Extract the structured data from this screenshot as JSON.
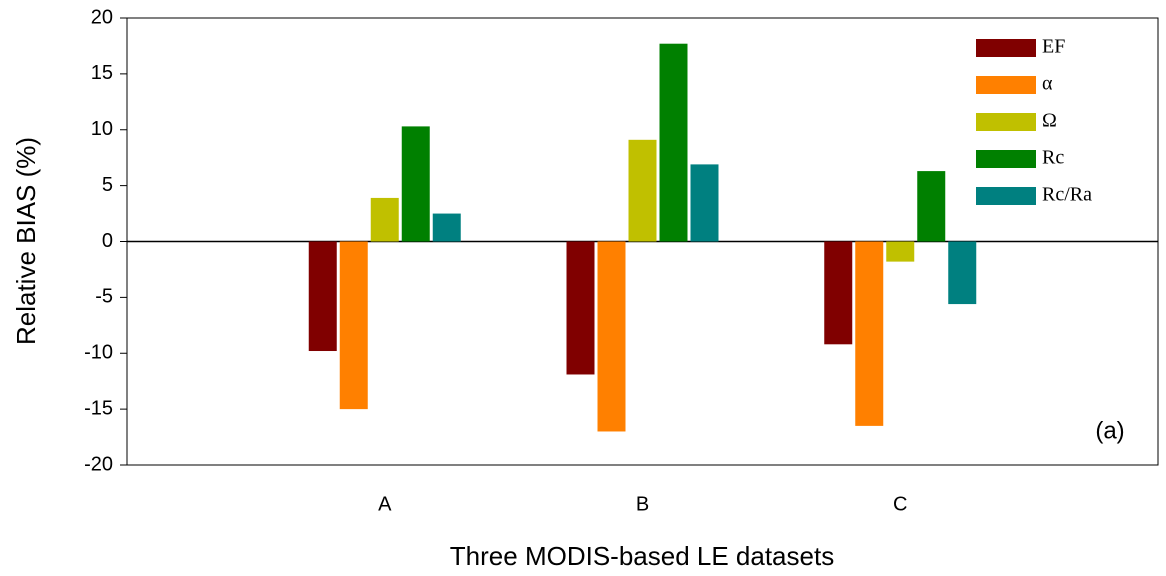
{
  "chart_data": {
    "type": "bar",
    "annotation": "(a)",
    "x_label": "Three MODIS-based LE datasets",
    "y_label": "Relative BIAS (%)",
    "categories": [
      "A",
      "B",
      "C"
    ],
    "series": [
      {
        "name": "EF",
        "color": "#800000",
        "values": [
          -9.8,
          -11.9,
          -9.2
        ]
      },
      {
        "name": "α",
        "color": "#ff8000",
        "values": [
          -15,
          -17,
          -16.5
        ]
      },
      {
        "name": "Ω",
        "color": "#c0c000",
        "values": [
          3.9,
          9.1,
          -1.8
        ]
      },
      {
        "name": "Rc",
        "color": "#008000",
        "values": [
          10.3,
          17.7,
          6.3
        ]
      },
      {
        "name": "Rc/Ra",
        "color": "#008080",
        "values": [
          2.5,
          6.9,
          -5.6
        ]
      }
    ],
    "ylim": [
      -20,
      20
    ],
    "yticks": [
      -20,
      -15,
      -10,
      -5,
      0,
      5,
      10,
      15,
      20
    ],
    "legend": "upper right"
  }
}
